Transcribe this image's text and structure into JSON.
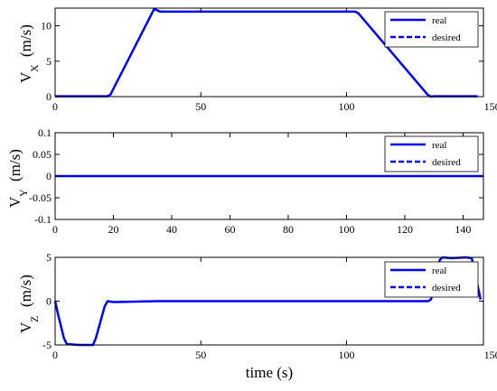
{
  "chart_data": [
    {
      "type": "line",
      "ylabel": {
        "main": "V",
        "sub": "X",
        "unit": "(m/s)"
      },
      "xlim": [
        0,
        147
      ],
      "ylim": [
        0,
        12.5
      ],
      "x_ticks": [
        0,
        50,
        100,
        150
      ],
      "x_tick_labels": [
        "0",
        "50",
        "100",
        "150"
      ],
      "y_ticks": [
        0,
        5,
        10
      ],
      "y_tick_labels": [
        "0",
        "5",
        "10"
      ],
      "grid": false,
      "legend": {
        "placement": "top-right",
        "entries": [
          "real",
          "desired"
        ]
      },
      "series": [
        {
          "name": "real",
          "style": "solid",
          "x": [
            0,
            18,
            19,
            34,
            36,
            103,
            104,
            128,
            129,
            130,
            145
          ],
          "y": [
            0.05,
            0.05,
            0.3,
            12.4,
            12.0,
            12.0,
            11.8,
            0.2,
            0.0,
            0.05,
            0.05
          ]
        },
        {
          "name": "desired",
          "style": "dashed",
          "x": [
            0,
            18,
            19,
            34,
            36,
            103,
            104,
            128,
            129,
            130,
            145
          ],
          "y": [
            0.05,
            0.05,
            0.3,
            12.4,
            12.0,
            12.0,
            11.8,
            0.2,
            0.0,
            0.05,
            0.05
          ]
        }
      ]
    },
    {
      "type": "line",
      "ylabel": {
        "main": "V",
        "sub": "Y",
        "unit": "(m/s)"
      },
      "xlim": [
        0,
        147
      ],
      "ylim": [
        -0.1,
        0.1
      ],
      "x_ticks": [
        0,
        20,
        40,
        60,
        80,
        100,
        120,
        140
      ],
      "x_tick_labels": [
        "0",
        "20",
        "40",
        "60",
        "80",
        "100",
        "120",
        "140"
      ],
      "y_ticks": [
        -0.1,
        -0.05,
        0,
        0.05,
        0.1
      ],
      "y_tick_labels": [
        "-0.1",
        "-0.05",
        "0",
        "0.05",
        "0.1"
      ],
      "grid": false,
      "legend": {
        "placement": "top-right",
        "entries": [
          "real",
          "desired"
        ]
      },
      "series": [
        {
          "name": "real",
          "style": "solid",
          "x": [
            0,
            147
          ],
          "y": [
            0,
            0
          ]
        },
        {
          "name": "desired",
          "style": "dashed",
          "x": [
            0,
            147
          ],
          "y": [
            0,
            0
          ]
        }
      ]
    },
    {
      "type": "line",
      "ylabel": {
        "main": "V",
        "sub": "Z",
        "unit": "(m/s)"
      },
      "xlabel": "time (s)",
      "xlim": [
        0,
        147
      ],
      "ylim": [
        -5,
        5
      ],
      "x_ticks": [
        0,
        50,
        100,
        150
      ],
      "x_tick_labels": [
        "0",
        "50",
        "100",
        "150"
      ],
      "y_ticks": [
        -5,
        0,
        5
      ],
      "y_tick_labels": [
        "-5",
        "0",
        "5"
      ],
      "grid": false,
      "legend": {
        "placement": "top-right",
        "entries": [
          "real",
          "desired"
        ]
      },
      "series": [
        {
          "name": "real",
          "style": "solid",
          "x": [
            0,
            1,
            3,
            4,
            8,
            13,
            14,
            17,
            18,
            20,
            35,
            128,
            129,
            132,
            133,
            136,
            141,
            143,
            146
          ],
          "y": [
            0,
            -1.5,
            -4.2,
            -4.9,
            -5.0,
            -5.0,
            -4.2,
            -0.6,
            0,
            -0.1,
            0,
            0,
            0.2,
            4.7,
            5.0,
            4.9,
            5.0,
            4.9,
            0.2
          ]
        },
        {
          "name": "desired",
          "style": "dashed",
          "x": [
            0,
            1,
            3,
            4,
            8,
            13,
            14,
            17,
            18,
            20,
            35,
            128,
            129,
            132,
            133,
            136,
            141,
            143,
            146
          ],
          "y": [
            0,
            -1.5,
            -4.2,
            -4.9,
            -5.0,
            -5.0,
            -4.2,
            -0.6,
            0,
            -0.1,
            0,
            0,
            0.2,
            4.7,
            5.0,
            4.9,
            5.0,
            4.9,
            0.2
          ]
        }
      ]
    }
  ],
  "colors": {
    "line": "#0000ff",
    "axes": "#000000",
    "background": "#ffffff"
  }
}
